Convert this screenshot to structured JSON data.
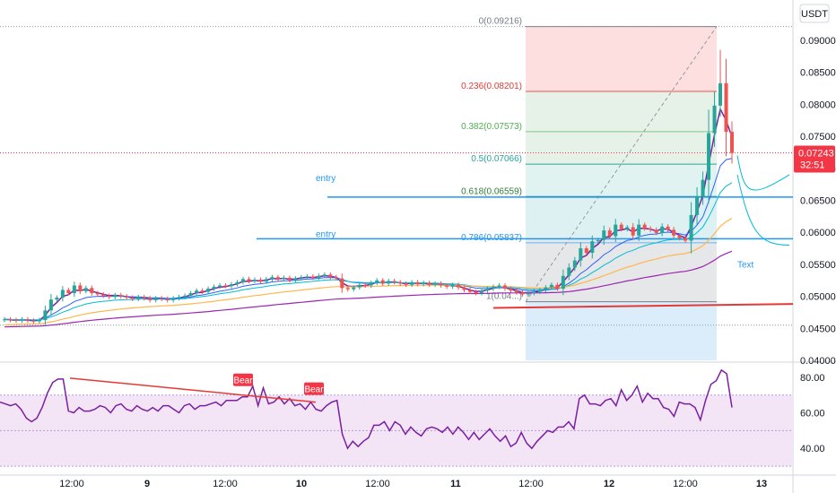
{
  "currency": "USDT",
  "colors": {
    "up": "#26a69a",
    "down": "#ef5350",
    "ema_dark": "#7b1fa2",
    "ema_blue": "#2962ff",
    "ema_teal": "#00bcd4",
    "ema_orange": "#ffb74d",
    "ema_purple": "#9c27b0",
    "hline": "#2196f3",
    "trendline": "#e53935",
    "rsi": "#7b1fa2",
    "rsi_band": "#f3e5f5",
    "price_tag": "#f23645"
  },
  "chart_data": [
    {
      "type": "candlestick",
      "title": "",
      "ylim": [
        0.04,
        0.0935
      ],
      "y_ticks": [
        "0.09000",
        "0.08500",
        "0.08000",
        "0.07500",
        "0.07000",
        "0.06500",
        "0.06000",
        "0.05500",
        "0.05000",
        "0.04500",
        "0.04000"
      ],
      "x_ticks": [
        {
          "label": "12:00",
          "bold": false
        },
        {
          "label": "9",
          "bold": true
        },
        {
          "label": "12:00",
          "bold": false
        },
        {
          "label": "10",
          "bold": true
        },
        {
          "label": "12:00",
          "bold": false
        },
        {
          "label": "11",
          "bold": true
        },
        {
          "label": "12:00",
          "bold": false
        },
        {
          "label": "12",
          "bold": true
        },
        {
          "label": "12:00",
          "bold": false
        },
        {
          "label": "13",
          "bold": true
        }
      ],
      "current_price": {
        "value": "0.07243",
        "countdown": "32:51"
      },
      "closes": [
        0.0464,
        0.0463,
        0.0462,
        0.0464,
        0.0462,
        0.0461,
        0.0463,
        0.0478,
        0.0495,
        0.0498,
        0.051,
        0.0505,
        0.0517,
        0.0508,
        0.0513,
        0.0505,
        0.0503,
        0.0501,
        0.0499,
        0.0502,
        0.05,
        0.0498,
        0.0496,
        0.0499,
        0.0497,
        0.0494,
        0.0497,
        0.0496,
        0.0494,
        0.0497,
        0.0499,
        0.0501,
        0.0505,
        0.0509,
        0.0507,
        0.0512,
        0.0515,
        0.0517,
        0.0516,
        0.0519,
        0.0522,
        0.0527,
        0.0524,
        0.0526,
        0.0523,
        0.0527,
        0.053,
        0.0527,
        0.0529,
        0.0525,
        0.0528,
        0.053,
        0.0531,
        0.0529,
        0.0532,
        0.0534,
        0.053,
        0.0528,
        0.0513,
        0.0511,
        0.0514,
        0.0518,
        0.0517,
        0.0521,
        0.0525,
        0.052,
        0.0524,
        0.0522,
        0.052,
        0.0518,
        0.0522,
        0.0519,
        0.0521,
        0.0518,
        0.052,
        0.0517,
        0.0515,
        0.0518,
        0.0514,
        0.051,
        0.0507,
        0.0505,
        0.0509,
        0.0512,
        0.0515,
        0.0517,
        0.0512,
        0.0509,
        0.0506,
        0.0503,
        0.0505,
        0.0507,
        0.051,
        0.0514,
        0.0518,
        0.0512,
        0.0532,
        0.0545,
        0.0556,
        0.0575,
        0.0568,
        0.0586,
        0.0588,
        0.0603,
        0.0594,
        0.0612,
        0.0605,
        0.0608,
        0.0595,
        0.0612,
        0.0606,
        0.0604,
        0.0599,
        0.0609,
        0.0604,
        0.0595,
        0.0591,
        0.0587,
        0.0627,
        0.0656,
        0.0682,
        0.0755,
        0.0798,
        0.0833,
        0.0757,
        0.0724
      ],
      "legend_labels": [
        {
          "text": "0(0.09216)",
          "color": "#787b86"
        },
        {
          "text": "0.236(0.08201)",
          "color": "#e53935"
        },
        {
          "text": "0.382(0.07573)",
          "color": "#4caf50"
        },
        {
          "text": "0.5(0.07066)",
          "color": "#26a69a"
        },
        {
          "text": "0.618(0.06559)",
          "color": "#2e7d32"
        },
        {
          "text": "0.786(0.05837)",
          "color": "#2196f3"
        },
        {
          "text": "1(0.04...)",
          "color": "#787b86"
        }
      ],
      "fib_levels": [
        0.09216,
        0.08201,
        0.07573,
        0.07066,
        0.06559,
        0.05837,
        0.04915
      ],
      "horizontal_lines": [
        0.0655,
        0.059
      ],
      "annotations": [
        "entry",
        "entry",
        "Text"
      ]
    },
    {
      "type": "line",
      "title": "",
      "ylim": [
        26,
        88
      ],
      "y_ticks": [
        "80.00",
        "60.00",
        "40.00"
      ],
      "band": [
        30,
        70
      ],
      "mid": 50,
      "values": [
        66,
        65,
        64,
        65,
        62,
        57,
        55,
        57,
        63,
        71,
        77,
        79,
        79,
        61,
        60,
        63,
        61,
        61,
        62,
        64,
        63,
        60,
        64,
        65,
        62,
        61,
        64,
        62,
        61,
        63,
        61,
        64,
        64,
        62,
        60,
        64,
        65,
        62,
        64,
        64,
        65,
        66,
        64,
        67,
        67,
        67,
        69,
        69,
        75,
        64,
        74,
        65,
        66,
        69,
        65,
        68,
        64,
        65,
        62,
        66,
        62,
        61,
        64,
        66,
        67,
        48,
        40,
        44,
        41,
        44,
        46,
        53,
        53,
        55,
        50,
        55,
        53,
        48,
        52,
        49,
        47,
        51,
        52,
        51,
        49,
        52,
        48,
        52,
        49,
        45,
        49,
        45,
        48,
        51,
        47,
        44,
        47,
        41,
        43,
        49,
        43,
        40,
        44,
        47,
        50,
        49,
        52,
        52,
        55,
        51,
        68,
        70,
        65,
        65,
        64,
        67,
        68,
        64,
        73,
        67,
        70,
        75,
        66,
        71,
        68,
        68,
        63,
        62,
        58,
        66,
        65,
        65,
        63,
        56,
        67,
        76,
        78,
        84,
        82,
        63
      ],
      "markers": [
        {
          "label": "Bear"
        },
        {
          "label": "Bear"
        }
      ]
    }
  ]
}
